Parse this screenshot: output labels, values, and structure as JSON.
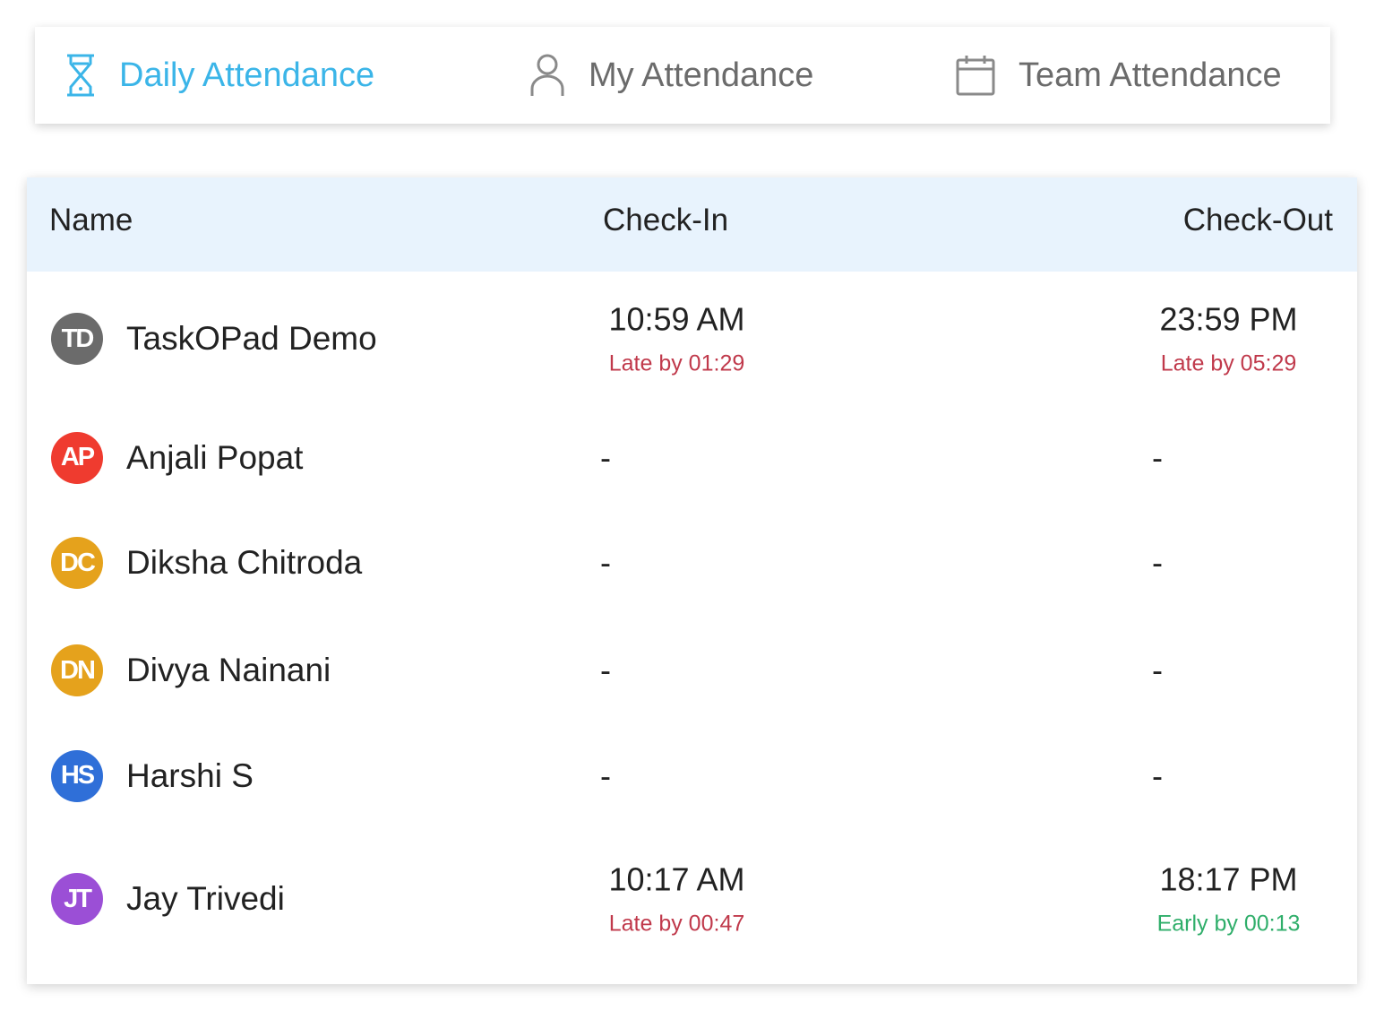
{
  "tabs": [
    {
      "label": "Daily Attendance",
      "icon": "hourglass-icon",
      "active": true
    },
    {
      "label": "My Attendance",
      "icon": "user-icon",
      "active": false
    },
    {
      "label": "Team Attendance",
      "icon": "calendar-icon",
      "active": false
    }
  ],
  "table": {
    "headers": {
      "name": "Name",
      "check_in": "Check-In",
      "check_out": "Check-Out"
    },
    "rows": [
      {
        "initials": "TD",
        "name": "TaskOPad Demo",
        "avatar_color": "#6b6b6b",
        "check_in": "10:59 AM",
        "check_in_note": "Late by 01:29",
        "check_in_note_color": "#c0394b",
        "check_out": "23:59 PM",
        "check_out_note": "Late by 05:29",
        "check_out_note_color": "#c0394b"
      },
      {
        "initials": "AP",
        "name": "Anjali Popat",
        "avatar_color": "#ef3b2f",
        "check_in": "-",
        "check_out": "-"
      },
      {
        "initials": "DC",
        "name": "Diksha Chitroda",
        "avatar_color": "#e5a21c",
        "check_in": "-",
        "check_out": "-"
      },
      {
        "initials": "DN",
        "name": "Divya Nainani",
        "avatar_color": "#e5a21c",
        "check_in": "-",
        "check_out": "-"
      },
      {
        "initials": "HS",
        "name": "Harshi S",
        "avatar_color": "#2f6fd8",
        "check_in": "-",
        "check_out": "-"
      },
      {
        "initials": "JT",
        "name": "Jay Trivedi",
        "avatar_color": "#9b4fd6",
        "check_in": "10:17 AM",
        "check_in_note": "Late by 00:47",
        "check_in_note_color": "#c0394b",
        "check_out": "18:17 PM",
        "check_out_note": "Early by 00:13",
        "check_out_note_color": "#2fae6a"
      }
    ]
  },
  "colors": {
    "accent": "#3bb5e8",
    "header_bg": "#e8f3fd"
  }
}
